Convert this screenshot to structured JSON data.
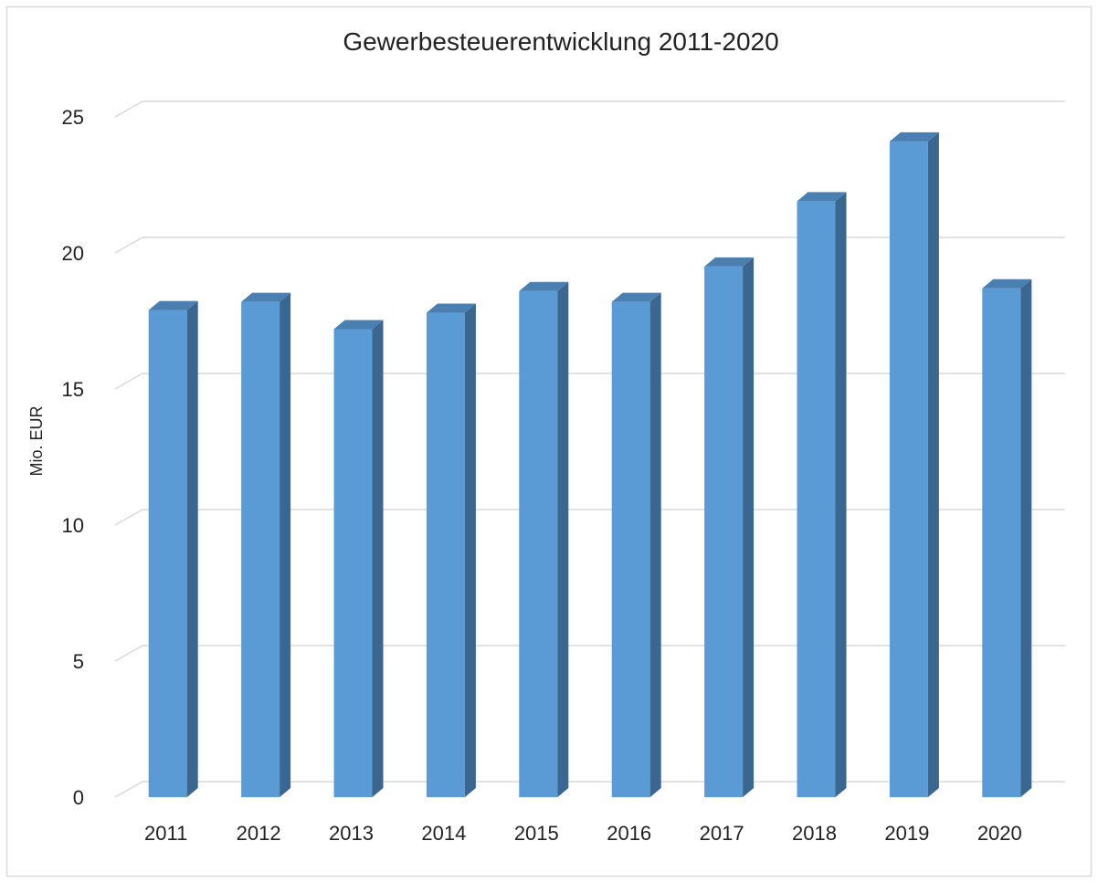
{
  "chart_data": {
    "type": "bar",
    "title": "Gewerbesteuerentwicklung 2011-2020",
    "xlabel": "",
    "ylabel": "Mio. EUR",
    "categories": [
      "2011",
      "2012",
      "2013",
      "2014",
      "2015",
      "2016",
      "2017",
      "2018",
      "2019",
      "2020"
    ],
    "series": [
      {
        "values": [
          17.9,
          18.2,
          17.2,
          17.8,
          18.6,
          18.2,
          19.5,
          21.9,
          24.1,
          18.7
        ]
      }
    ],
    "ylim": [
      0,
      25
    ],
    "yticks": [
      "0",
      "5",
      "10",
      "15",
      "20",
      "25"
    ],
    "grid": true,
    "legend": "none",
    "style": "3d-column",
    "colors": {
      "bar_front": "#5b9bd5",
      "bar_side": "#3a6690",
      "bar_top": "#4a7fb2",
      "grid": "#d9d9d9",
      "border": "#d9d9d9",
      "text": "#222222"
    }
  }
}
